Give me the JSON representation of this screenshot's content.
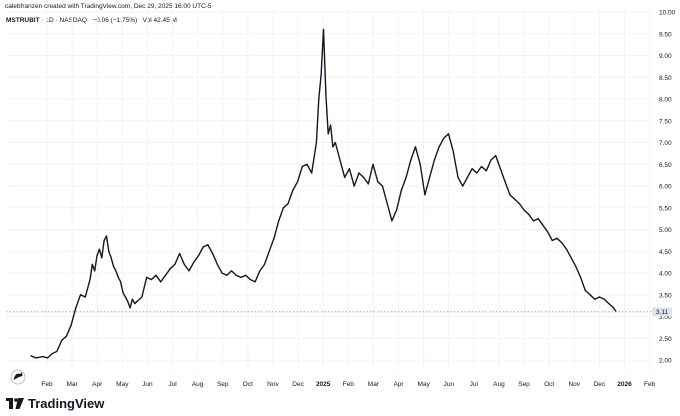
{
  "caption": "calebfranzen created with TradingView.com, Dec 29, 2025 16:00 UTC-5",
  "legend": {
    "symbol": "MSTRUBIT",
    "interval": "1D",
    "exchange": "NASDAQ",
    "change": "−0.06 (−1.75%)",
    "volume": "Vol 42.45 M"
  },
  "brand": {
    "name": "TradingView",
    "icon": "tradingview-logo-icon"
  },
  "colors": {
    "line": "#131722",
    "grid": "#f0f3fa",
    "axis_text": "#131722",
    "price_label_bg": "#e0e3eb"
  },
  "chart_data": {
    "type": "line",
    "title": "",
    "xlabel": "",
    "ylabel": "",
    "ylim": [
      1.75,
      10.0
    ],
    "y_ticks": [
      "10.00",
      "9.50",
      "9.00",
      "8.50",
      "8.00",
      "7.50",
      "7.00",
      "6.50",
      "6.00",
      "5.50",
      "5.00",
      "4.50",
      "4.00",
      "3.50",
      "3.00",
      "2.50",
      "2.00"
    ],
    "x_ticks": [
      "Feb",
      "Mar",
      "Apr",
      "May",
      "Jun",
      "Jul",
      "Aug",
      "Sep",
      "Oct",
      "Nov",
      "Dec",
      "2025",
      "Feb",
      "Mar",
      "Apr",
      "May",
      "Jun",
      "Jul",
      "Aug",
      "Sep",
      "Oct",
      "Nov",
      "Dec",
      "2026",
      "Feb"
    ],
    "last_price": 3.11,
    "last_price_label": "3.11",
    "series": [
      {
        "values": [
          [
            0,
            2.1
          ],
          [
            2,
            2.05
          ],
          [
            5,
            2.08
          ],
          [
            7,
            2.05
          ],
          [
            9,
            2.15
          ],
          [
            11,
            2.2
          ],
          [
            13,
            2.45
          ],
          [
            15,
            2.55
          ],
          [
            17,
            2.8
          ],
          [
            19,
            3.2
          ],
          [
            21,
            3.5
          ],
          [
            23,
            3.45
          ],
          [
            25,
            3.85
          ],
          [
            26,
            4.2
          ],
          [
            27,
            4.05
          ],
          [
            28,
            4.4
          ],
          [
            29,
            4.55
          ],
          [
            30,
            4.35
          ],
          [
            31,
            4.75
          ],
          [
            32,
            4.85
          ],
          [
            33,
            4.5
          ],
          [
            34,
            4.35
          ],
          [
            35,
            4.15
          ],
          [
            36,
            4.05
          ],
          [
            37,
            3.9
          ],
          [
            38,
            3.8
          ],
          [
            39,
            3.55
          ],
          [
            40,
            3.45
          ],
          [
            41,
            3.35
          ],
          [
            42,
            3.2
          ],
          [
            43,
            3.4
          ],
          [
            44,
            3.3
          ],
          [
            45,
            3.35
          ],
          [
            47,
            3.45
          ],
          [
            49,
            3.9
          ],
          [
            51,
            3.85
          ],
          [
            53,
            3.95
          ],
          [
            55,
            3.8
          ],
          [
            57,
            3.95
          ],
          [
            59,
            4.1
          ],
          [
            61,
            4.2
          ],
          [
            63,
            4.45
          ],
          [
            65,
            4.2
          ],
          [
            67,
            4.05
          ],
          [
            69,
            4.25
          ],
          [
            71,
            4.4
          ],
          [
            73,
            4.6
          ],
          [
            75,
            4.65
          ],
          [
            77,
            4.45
          ],
          [
            79,
            4.2
          ],
          [
            81,
            4.0
          ],
          [
            83,
            3.95
          ],
          [
            85,
            4.05
          ],
          [
            87,
            3.95
          ],
          [
            89,
            3.9
          ],
          [
            91,
            3.95
          ],
          [
            93,
            3.85
          ],
          [
            95,
            3.8
          ],
          [
            97,
            4.05
          ],
          [
            99,
            4.2
          ],
          [
            101,
            4.5
          ],
          [
            103,
            4.8
          ],
          [
            105,
            5.2
          ],
          [
            107,
            5.5
          ],
          [
            109,
            5.6
          ],
          [
            111,
            5.9
          ],
          [
            113,
            6.1
          ],
          [
            115,
            6.45
          ],
          [
            117,
            6.5
          ],
          [
            119,
            6.3
          ],
          [
            121,
            7.0
          ],
          [
            122,
            8.0
          ],
          [
            123,
            8.55
          ],
          [
            124,
            9.6
          ],
          [
            125,
            8.1
          ],
          [
            126,
            7.2
          ],
          [
            127,
            7.4
          ],
          [
            128,
            6.9
          ],
          [
            129,
            7.0
          ],
          [
            131,
            6.6
          ],
          [
            133,
            6.2
          ],
          [
            135,
            6.4
          ],
          [
            137,
            6.0
          ],
          [
            139,
            6.3
          ],
          [
            141,
            6.2
          ],
          [
            143,
            6.05
          ],
          [
            145,
            6.5
          ],
          [
            147,
            6.1
          ],
          [
            149,
            6.0
          ],
          [
            151,
            5.6
          ],
          [
            153,
            5.2
          ],
          [
            155,
            5.45
          ],
          [
            157,
            5.9
          ],
          [
            159,
            6.2
          ],
          [
            161,
            6.6
          ],
          [
            163,
            6.9
          ],
          [
            165,
            6.5
          ],
          [
            167,
            5.8
          ],
          [
            169,
            6.2
          ],
          [
            171,
            6.6
          ],
          [
            173,
            6.9
          ],
          [
            175,
            7.1
          ],
          [
            177,
            7.2
          ],
          [
            179,
            6.8
          ],
          [
            181,
            6.2
          ],
          [
            183,
            6.0
          ],
          [
            185,
            6.2
          ],
          [
            187,
            6.4
          ],
          [
            189,
            6.3
          ],
          [
            191,
            6.45
          ],
          [
            193,
            6.35
          ],
          [
            195,
            6.6
          ],
          [
            197,
            6.7
          ],
          [
            199,
            6.4
          ],
          [
            201,
            6.1
          ],
          [
            203,
            5.8
          ],
          [
            205,
            5.7
          ],
          [
            207,
            5.6
          ],
          [
            209,
            5.45
          ],
          [
            211,
            5.35
          ],
          [
            213,
            5.2
          ],
          [
            215,
            5.25
          ],
          [
            217,
            5.1
          ],
          [
            219,
            4.95
          ],
          [
            221,
            4.75
          ],
          [
            223,
            4.8
          ],
          [
            225,
            4.7
          ],
          [
            227,
            4.55
          ],
          [
            229,
            4.35
          ],
          [
            231,
            4.15
          ],
          [
            233,
            3.9
          ],
          [
            235,
            3.6
          ],
          [
            237,
            3.5
          ],
          [
            239,
            3.4
          ],
          [
            241,
            3.45
          ],
          [
            243,
            3.4
          ],
          [
            245,
            3.3
          ],
          [
            247,
            3.2
          ],
          [
            248,
            3.11
          ]
        ]
      }
    ]
  }
}
